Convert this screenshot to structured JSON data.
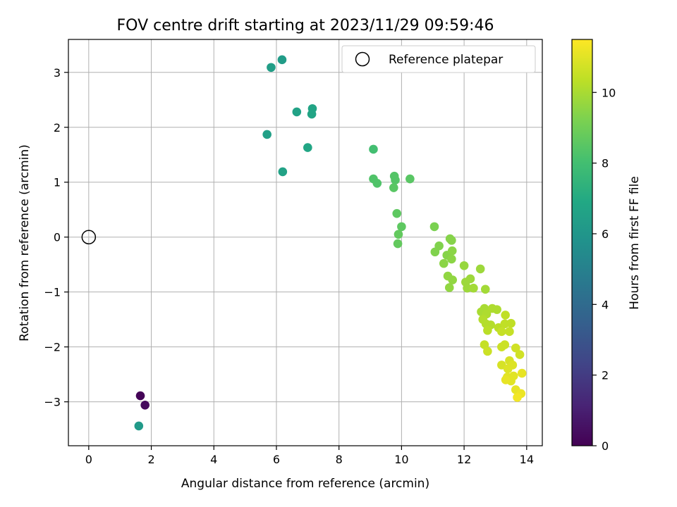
{
  "chart_data": {
    "type": "scatter",
    "title": "FOV centre drift starting at 2023/11/29 09:59:46",
    "xlabel": "Angular distance from reference (arcmin)",
    "ylabel": "Rotation from reference (arcmin)",
    "xlim": [
      -0.65,
      14.5
    ],
    "ylim": [
      -3.8,
      3.6
    ],
    "xticks": [
      0,
      2,
      4,
      6,
      8,
      10,
      12,
      14
    ],
    "yticks": [
      -3,
      -2,
      -1,
      0,
      1,
      2,
      3
    ],
    "grid": true,
    "legend": {
      "placement": "top-right",
      "entries": [
        "Reference platepar"
      ]
    },
    "colorbar": {
      "label": "Hours from first FF file",
      "range": [
        0,
        11.5
      ],
      "ticks": [
        0,
        2,
        4,
        6,
        8,
        10
      ],
      "colormap": "viridis"
    },
    "reference_point": {
      "x": 0,
      "y": 0
    },
    "points": [
      {
        "x": 1.65,
        "y": -2.89,
        "t": 0.1
      },
      {
        "x": 1.8,
        "y": -3.06,
        "t": 0.3
      },
      {
        "x": 1.6,
        "y": -3.44,
        "t": 6.2
      },
      {
        "x": 6.18,
        "y": 3.23,
        "t": 6.3
      },
      {
        "x": 5.83,
        "y": 3.09,
        "t": 6.4
      },
      {
        "x": 6.65,
        "y": 2.28,
        "t": 6.6
      },
      {
        "x": 7.15,
        "y": 2.34,
        "t": 6.7
      },
      {
        "x": 7.13,
        "y": 2.24,
        "t": 6.7
      },
      {
        "x": 5.7,
        "y": 1.87,
        "t": 6.5
      },
      {
        "x": 7.0,
        "y": 1.63,
        "t": 6.8
      },
      {
        "x": 6.2,
        "y": 1.19,
        "t": 6.6
      },
      {
        "x": 9.1,
        "y": 1.6,
        "t": 8.0
      },
      {
        "x": 9.1,
        "y": 1.06,
        "t": 8.3
      },
      {
        "x": 9.22,
        "y": 0.98,
        "t": 8.3
      },
      {
        "x": 9.77,
        "y": 1.11,
        "t": 8.4
      },
      {
        "x": 9.8,
        "y": 1.04,
        "t": 8.4
      },
      {
        "x": 9.75,
        "y": 0.9,
        "t": 8.5
      },
      {
        "x": 10.27,
        "y": 1.06,
        "t": 8.5
      },
      {
        "x": 9.85,
        "y": 0.43,
        "t": 8.6
      },
      {
        "x": 10.0,
        "y": 0.19,
        "t": 8.6
      },
      {
        "x": 9.9,
        "y": 0.05,
        "t": 8.7
      },
      {
        "x": 9.88,
        "y": -0.12,
        "t": 8.7
      },
      {
        "x": 11.05,
        "y": 0.19,
        "t": 9.2
      },
      {
        "x": 11.2,
        "y": -0.16,
        "t": 9.3
      },
      {
        "x": 11.07,
        "y": -0.27,
        "t": 9.3
      },
      {
        "x": 11.55,
        "y": -0.03,
        "t": 9.4
      },
      {
        "x": 11.6,
        "y": -0.06,
        "t": 9.4
      },
      {
        "x": 11.45,
        "y": -0.33,
        "t": 9.4
      },
      {
        "x": 11.62,
        "y": -0.25,
        "t": 9.5
      },
      {
        "x": 11.6,
        "y": -0.4,
        "t": 9.5
      },
      {
        "x": 11.35,
        "y": -0.48,
        "t": 9.5
      },
      {
        "x": 11.48,
        "y": -0.71,
        "t": 9.6
      },
      {
        "x": 11.63,
        "y": -0.78,
        "t": 9.6
      },
      {
        "x": 11.53,
        "y": -0.92,
        "t": 9.6
      },
      {
        "x": 12.0,
        "y": -0.52,
        "t": 9.7
      },
      {
        "x": 12.52,
        "y": -0.58,
        "t": 9.8
      },
      {
        "x": 12.2,
        "y": -0.76,
        "t": 9.8
      },
      {
        "x": 12.05,
        "y": -0.82,
        "t": 9.8
      },
      {
        "x": 12.1,
        "y": -0.93,
        "t": 9.8
      },
      {
        "x": 12.3,
        "y": -0.93,
        "t": 9.9
      },
      {
        "x": 12.68,
        "y": -0.95,
        "t": 9.9
      },
      {
        "x": 12.65,
        "y": -1.3,
        "t": 10.0
      },
      {
        "x": 12.55,
        "y": -1.36,
        "t": 10.0
      },
      {
        "x": 12.72,
        "y": -1.4,
        "t": 10.1
      },
      {
        "x": 12.9,
        "y": -1.3,
        "t": 10.1
      },
      {
        "x": 13.05,
        "y": -1.32,
        "t": 10.1
      },
      {
        "x": 12.6,
        "y": -1.5,
        "t": 10.2
      },
      {
        "x": 12.7,
        "y": -1.58,
        "t": 10.2
      },
      {
        "x": 12.85,
        "y": -1.6,
        "t": 10.2
      },
      {
        "x": 12.75,
        "y": -1.7,
        "t": 10.3
      },
      {
        "x": 13.1,
        "y": -1.65,
        "t": 10.3
      },
      {
        "x": 13.32,
        "y": -1.42,
        "t": 10.4
      },
      {
        "x": 13.3,
        "y": -1.58,
        "t": 10.4
      },
      {
        "x": 13.5,
        "y": -1.57,
        "t": 10.4
      },
      {
        "x": 13.2,
        "y": -1.72,
        "t": 10.5
      },
      {
        "x": 13.45,
        "y": -1.72,
        "t": 10.5
      },
      {
        "x": 12.65,
        "y": -1.96,
        "t": 10.5
      },
      {
        "x": 12.75,
        "y": -2.08,
        "t": 10.6
      },
      {
        "x": 13.2,
        "y": -2.0,
        "t": 10.6
      },
      {
        "x": 13.3,
        "y": -1.96,
        "t": 10.6
      },
      {
        "x": 13.65,
        "y": -2.02,
        "t": 10.7
      },
      {
        "x": 13.78,
        "y": -2.14,
        "t": 10.7
      },
      {
        "x": 13.2,
        "y": -2.33,
        "t": 10.8
      },
      {
        "x": 13.45,
        "y": -2.25,
        "t": 10.8
      },
      {
        "x": 13.55,
        "y": -2.33,
        "t": 10.9
      },
      {
        "x": 13.4,
        "y": -2.4,
        "t": 10.9
      },
      {
        "x": 13.38,
        "y": -2.55,
        "t": 11.0
      },
      {
        "x": 13.5,
        "y": -2.62,
        "t": 11.0
      },
      {
        "x": 13.58,
        "y": -2.53,
        "t": 11.0
      },
      {
        "x": 13.85,
        "y": -2.48,
        "t": 11.1
      },
      {
        "x": 13.65,
        "y": -2.78,
        "t": 11.1
      },
      {
        "x": 13.82,
        "y": -2.85,
        "t": 11.2
      },
      {
        "x": 13.7,
        "y": -2.92,
        "t": 11.3
      },
      {
        "x": 13.33,
        "y": -2.6,
        "t": 11.1
      }
    ]
  }
}
